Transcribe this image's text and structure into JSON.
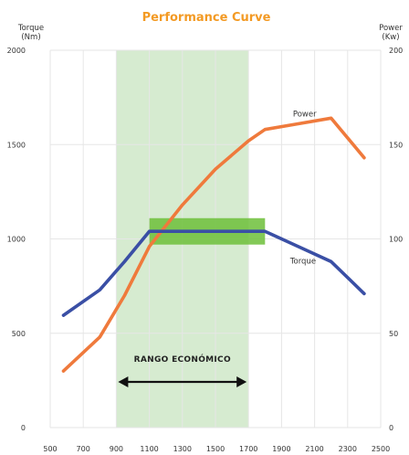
{
  "chart_data": {
    "type": "line",
    "title": "Performance Curve",
    "y_left_label_line1": "Torque",
    "y_left_label_line2": "(Nm)",
    "y_right_label_line1": "Power",
    "y_right_label_line2": "(Kw)",
    "xlim": [
      500,
      2500
    ],
    "ylim_left": [
      0,
      2000
    ],
    "ylim_right": [
      0,
      200
    ],
    "x_ticks": [
      "500",
      "700",
      "900",
      "1100",
      "1300",
      "1500",
      "1700",
      "1900",
      "2100",
      "2300",
      "2500"
    ],
    "y_left_ticks": [
      "0",
      "500",
      "1000",
      "1500",
      "2000"
    ],
    "y_right_ticks": [
      "0",
      "50",
      "100",
      "150",
      "200"
    ],
    "grid": true,
    "band": {
      "x_start": 900,
      "x_end": 1700,
      "label": "RANGO ECONÓMICO",
      "color": "#cfe8c8"
    },
    "highlight_box": {
      "x_start": 1100,
      "x_end": 1800,
      "y_left_min": 970,
      "y_left_max": 1110,
      "color": "#6dbf3a"
    },
    "series": [
      {
        "name": "Torque",
        "axis": "left",
        "color": "#3a4fa5",
        "x": [
          580,
          800,
          950,
          1100,
          1800,
          2000,
          2200,
          2400
        ],
        "y": [
          595,
          730,
          880,
          1040,
          1040,
          960,
          880,
          710
        ]
      },
      {
        "name": "Power",
        "axis": "right",
        "color": "#ef7a3c",
        "x": [
          580,
          800,
          950,
          1100,
          1300,
          1500,
          1700,
          1800,
          2000,
          2200,
          2400
        ],
        "y": [
          30,
          48,
          70,
          96,
          118,
          137,
          152,
          158,
          161,
          164,
          143
        ]
      }
    ]
  },
  "colors": {
    "title": "#f39a24",
    "grid": "#e6e6e6",
    "axis": "#888888",
    "arrow": "#111111"
  }
}
